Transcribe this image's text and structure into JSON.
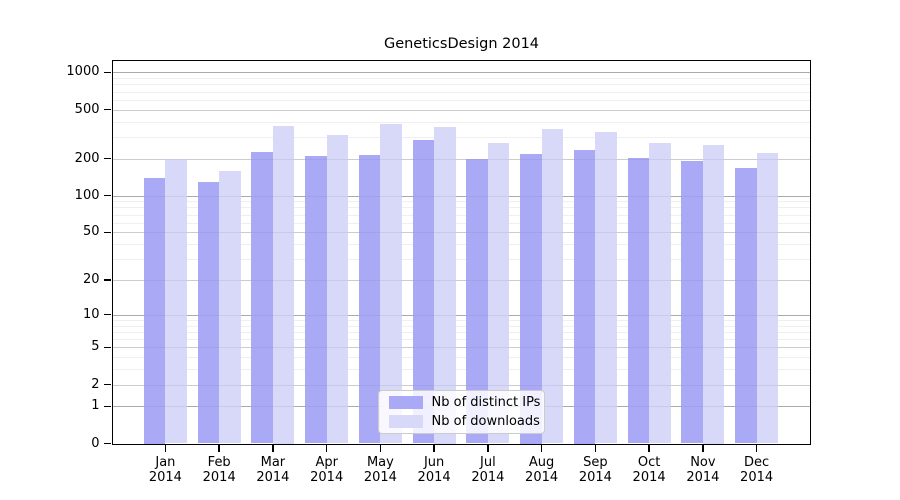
{
  "title": "GeneticsDesign 2014",
  "chart_data": {
    "type": "bar",
    "title": "GeneticsDesign 2014",
    "categories": [
      "Jan 2014",
      "Feb 2014",
      "Mar 2014",
      "Apr 2014",
      "May 2014",
      "Jun 2014",
      "Jul 2014",
      "Aug 2014",
      "Sep 2014",
      "Oct 2014",
      "Nov 2014",
      "Dec 2014"
    ],
    "month_line1": [
      "Jan",
      "Feb",
      "Mar",
      "Apr",
      "May",
      "Jun",
      "Jul",
      "Aug",
      "Sep",
      "Oct",
      "Nov",
      "Dec"
    ],
    "month_line2": "2014",
    "series": [
      {
        "name": "Nb of distinct IPs",
        "color": "#a9a9f6",
        "values": [
          139,
          128,
          227,
          209,
          213,
          281,
          200,
          218,
          237,
          202,
          190,
          167
        ]
      },
      {
        "name": "Nb of downloads",
        "color": "#d8d8f8",
        "values": [
          199,
          159,
          368,
          313,
          380,
          361,
          266,
          345,
          330,
          267,
          258,
          221
        ]
      }
    ],
    "yscale": "log10(1+x)",
    "yticks": [
      "0",
      "1",
      "2",
      "5",
      "10",
      "20",
      "50",
      "100",
      "200",
      "500",
      "1000"
    ],
    "ytick_values": [
      0,
      1,
      2,
      5,
      10,
      20,
      50,
      100,
      200,
      500,
      1000
    ],
    "ylim": [
      0,
      1250
    ],
    "grid": true,
    "legend_position": "inside-bottom-center",
    "colors": {
      "decade_gridline": "#b3b3b3",
      "labeled_gridline": "#dadada",
      "minor_gridline": "#efefef",
      "axis": "#000000",
      "background": "#ffffff"
    }
  }
}
